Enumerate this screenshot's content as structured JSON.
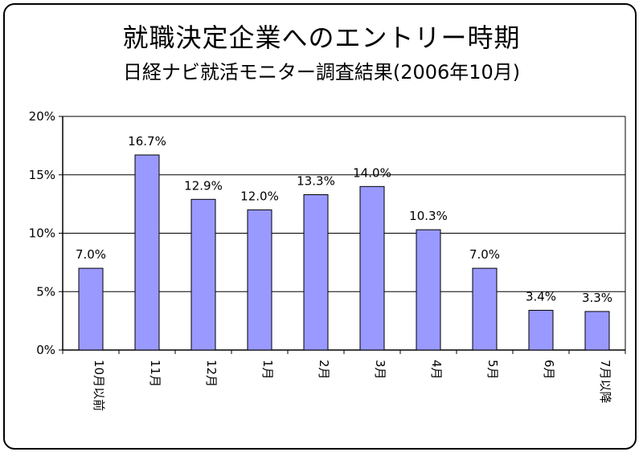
{
  "chart_data": {
    "type": "bar",
    "title": "就職決定企業へのエントリー時期",
    "subtitle": "日経ナビ就活モニター調査結果(2006年10月)",
    "categories": [
      "10月以前",
      "11月",
      "12月",
      "1月",
      "2月",
      "3月",
      "4月",
      "5月",
      "6月",
      "7月以降"
    ],
    "values": [
      7.0,
      16.7,
      12.9,
      12.0,
      13.3,
      14.0,
      10.3,
      7.0,
      3.4,
      3.3
    ],
    "value_labels": [
      "7.0%",
      "16.7%",
      "12.9%",
      "12.0%",
      "13.3%",
      "14.0%",
      "10.3%",
      "7.0%",
      "3.4%",
      "3.3%"
    ],
    "yticks": [
      0,
      5,
      10,
      15,
      20
    ],
    "ytick_labels": [
      "0%",
      "5%",
      "10%",
      "15%",
      "20%"
    ],
    "ylim": [
      0,
      20
    ],
    "grid": true,
    "legend": "none",
    "bar_color": "#9999ff",
    "bar_edge_color": "#000000"
  }
}
